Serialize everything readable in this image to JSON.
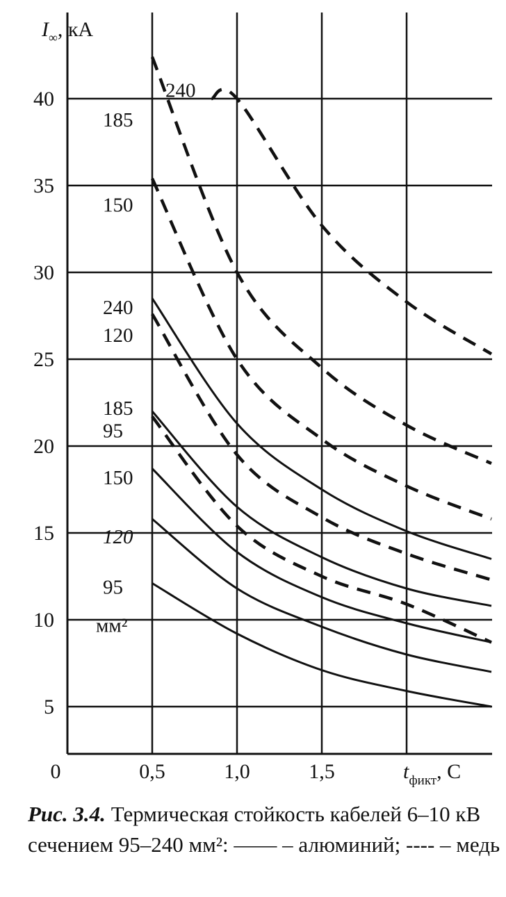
{
  "chart_data": {
    "type": "line",
    "title": "",
    "ylabel": {
      "symbol": "I",
      "sub": "∞",
      "unit": ", кА"
    },
    "xlabel": {
      "symbol": "t",
      "sub": "фикт",
      "unit": ", С"
    },
    "xlim": [
      0,
      2.5
    ],
    "ylim": [
      0,
      44
    ],
    "x_ticks": [
      {
        "value": 0,
        "label": "0"
      },
      {
        "value": 0.5,
        "label": "0,5"
      },
      {
        "value": 1.0,
        "label": "1,0"
      },
      {
        "value": 1.5,
        "label": "1,5"
      }
    ],
    "y_ticks": [
      {
        "value": 5,
        "label": "5"
      },
      {
        "value": 10,
        "label": "10"
      },
      {
        "value": 15,
        "label": "15"
      },
      {
        "value": 20,
        "label": "20"
      },
      {
        "value": 25,
        "label": "25"
      },
      {
        "value": 30,
        "label": "30"
      },
      {
        "value": 35,
        "label": "35"
      },
      {
        "value": 40,
        "label": "40"
      }
    ],
    "grid": true,
    "series": [
      {
        "name": "240",
        "material": "copper",
        "style": "dashed",
        "label_y": 40.5,
        "x": [
          0.85,
          1.0,
          1.5,
          2.0,
          2.5
        ],
        "values": [
          40.0,
          40.0,
          32.7,
          28.3,
          25.3
        ]
      },
      {
        "name": "185",
        "material": "copper",
        "style": "dashed",
        "label_y": 38.8,
        "x": [
          0.5,
          1.0,
          1.5,
          2.0,
          2.5
        ],
        "values": [
          42.4,
          30.0,
          24.5,
          21.2,
          19.0
        ]
      },
      {
        "name": "150",
        "material": "copper",
        "style": "dashed",
        "label_y": 33.9,
        "x": [
          0.5,
          1.0,
          1.5,
          2.0,
          2.5
        ],
        "values": [
          35.4,
          25.0,
          20.4,
          17.7,
          15.8
        ]
      },
      {
        "name": "120",
        "material": "copper",
        "style": "dashed",
        "label_y": 26.4,
        "x": [
          0.5,
          1.0,
          1.5,
          2.0,
          2.5
        ],
        "values": [
          27.6,
          19.5,
          15.9,
          13.8,
          12.3
        ]
      },
      {
        "name": "95",
        "material": "copper",
        "style": "dashed",
        "label_y": 20.9,
        "x": [
          0.5,
          1.0,
          1.5,
          2.0,
          2.5
        ],
        "values": [
          21.7,
          15.4,
          12.5,
          10.9,
          8.7
        ]
      },
      {
        "name": "240",
        "material": "aluminium",
        "style": "solid",
        "label_y": 28.0,
        "x": [
          0.5,
          1.0,
          1.5,
          2.0,
          2.5
        ],
        "values": [
          28.5,
          21.3,
          17.5,
          15.1,
          13.5
        ]
      },
      {
        "name": "185",
        "material": "aluminium",
        "style": "solid",
        "label_y": 22.2,
        "x": [
          0.5,
          1.0,
          1.5,
          2.0,
          2.5
        ],
        "values": [
          22.0,
          16.5,
          13.6,
          11.8,
          10.8
        ]
      },
      {
        "name": "150",
        "material": "aluminium",
        "style": "solid",
        "label_y": 18.2,
        "x": [
          0.5,
          1.0,
          1.5,
          2.0,
          2.5
        ],
        "values": [
          18.7,
          13.9,
          11.3,
          9.8,
          8.7
        ]
      },
      {
        "name": "120",
        "material": "aluminium",
        "style": "solid",
        "label_y": 14.8,
        "x": [
          0.5,
          1.0,
          1.5,
          2.0,
          2.5
        ],
        "values": [
          15.8,
          11.8,
          9.6,
          8.0,
          7.0
        ]
      },
      {
        "name": "95",
        "material": "aluminium",
        "style": "solid",
        "label_y": 11.9,
        "x": [
          0.5,
          1.0,
          1.5,
          2.0,
          2.5
        ],
        "values": [
          12.1,
          9.2,
          7.1,
          5.9,
          5.0
        ]
      }
    ],
    "extra_label": {
      "text": "мм²",
      "label_y": 9.7
    }
  },
  "caption": {
    "bold": "Рис. 3.4.",
    "text": " Термическая стойкость кабелей 6–10 кВ сечением 95–240 мм²: —— – алюминий; ---- – медь"
  }
}
